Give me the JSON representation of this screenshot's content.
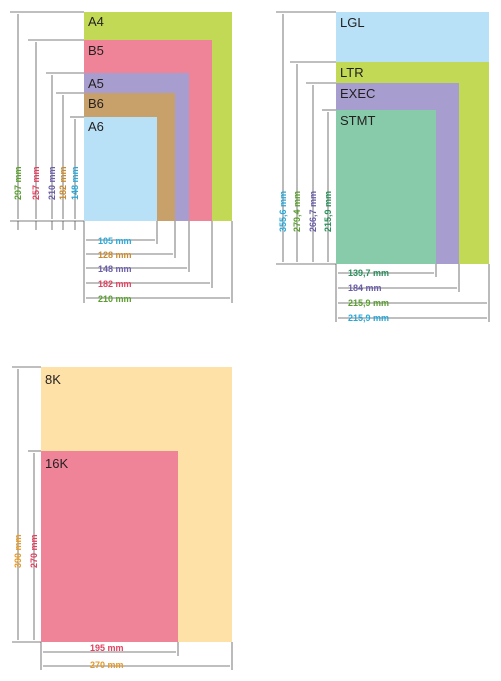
{
  "colors": {
    "A4": "#c2d955",
    "B5": "#ef8499",
    "A5": "#a79ecf",
    "B6": "#c8a06a",
    "A6": "#b8e1f7",
    "LGL": "#b8e1f7",
    "LTR": "#c2d955",
    "EXEC": "#a79ecf",
    "STMT": "#87cbaa",
    "K8": "#fde1a7",
    "K16": "#ef8499"
  },
  "labels": {
    "A4": "A4",
    "B5": "B5",
    "A5": "A5",
    "B6": "B6",
    "A6": "A6",
    "LGL": "LGL",
    "LTR": "LTR",
    "EXEC": "EXEC",
    "STMT": "STMT",
    "K8": "8K",
    "K16": "16K"
  },
  "dims": {
    "A4_h": "297 mm",
    "B5_h": "257 mm",
    "A5_h": "210 mm",
    "B6_h": "182 mm",
    "A6_h": "148 mm",
    "A6_w": "105 mm",
    "B6_w": "128 mm",
    "A5_w": "148 mm",
    "B5_w": "182 mm",
    "A4_w": "210 mm",
    "LGL_h": "355,6 mm",
    "LTR_h": "279,4 mm",
    "EXEC_h": "266,7 mm",
    "STMT_h": "215,9 mm",
    "STMT_w": "139,7 mm",
    "EXEC_w": "184 mm",
    "LTR_w": "215,9 mm",
    "LGL_w": "215,9 mm",
    "K8_h": "390 mm",
    "K16_h": "270 mm",
    "K16_w": "195 mm",
    "K8_w": "270 mm"
  },
  "dim_colors": {
    "A4": "#5a9e2f",
    "B5": "#e0415f",
    "A5": "#6a5ea7",
    "B6": "#c98a2e",
    "A6": "#2aa7d8",
    "LGL": "#2aa7d8",
    "LTR": "#5a9e2f",
    "EXEC": "#6a5ea7",
    "STMT": "#2a8f5a",
    "K8": "#e39a2a",
    "K16": "#e0415f"
  }
}
